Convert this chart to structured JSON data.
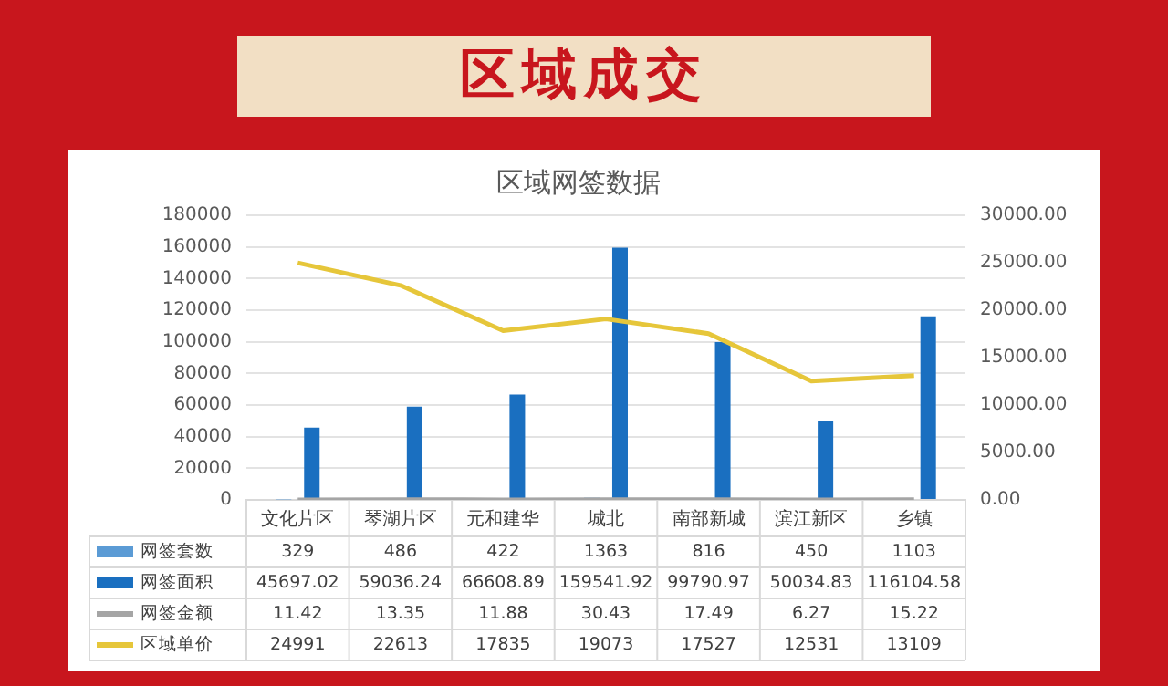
{
  "chart_data": {
    "type": "bar",
    "title": "区域成交",
    "subtitle": "区域网签数据",
    "categories": [
      "文化片区",
      "琴湖片区",
      "元和建华",
      "城北",
      "南部新城",
      "滨江新区",
      "乡镇"
    ],
    "series": [
      {
        "name": "网签套数",
        "color": "#5b9bd5",
        "values": [
          329,
          486,
          422,
          1363,
          816,
          450,
          1103
        ]
      },
      {
        "name": "网签面积",
        "color": "#1a6fc0",
        "values": [
          45697.02,
          59036.24,
          66608.89,
          159541.92,
          99790.97,
          50034.83,
          116104.58
        ]
      },
      {
        "name": "网签金额",
        "type": "line",
        "axis": "y2",
        "color": "#a5a5a5",
        "values": [
          11.42,
          13.35,
          11.88,
          30.43,
          17.49,
          6.27,
          15.22
        ]
      },
      {
        "name": "区域单价",
        "type": "line",
        "axis": "y2",
        "color": "#e6c63a",
        "values": [
          24991,
          22613,
          17835,
          19073,
          17527,
          12531,
          13109
        ]
      }
    ],
    "ylim": [
      0,
      180000
    ],
    "yticks": [
      0,
      20000,
      40000,
      60000,
      80000,
      100000,
      120000,
      140000,
      160000,
      180000
    ],
    "y2lim": [
      0,
      30000
    ],
    "y2ticks": [
      {
        "value": 0,
        "label": "0.00"
      },
      {
        "value": 5000,
        "label": "5000.00"
      },
      {
        "value": 10000,
        "label": "10000.00"
      },
      {
        "value": 15000,
        "label": "15000.00"
      },
      {
        "value": 20000,
        "label": "20000.00"
      },
      {
        "value": 25000,
        "label": "25000.00"
      },
      {
        "value": 30000,
        "label": "30000.00"
      }
    ],
    "grid": "y",
    "legend": "bottom",
    "data_labels": true,
    "marker": "none",
    "line_style": "solid"
  }
}
